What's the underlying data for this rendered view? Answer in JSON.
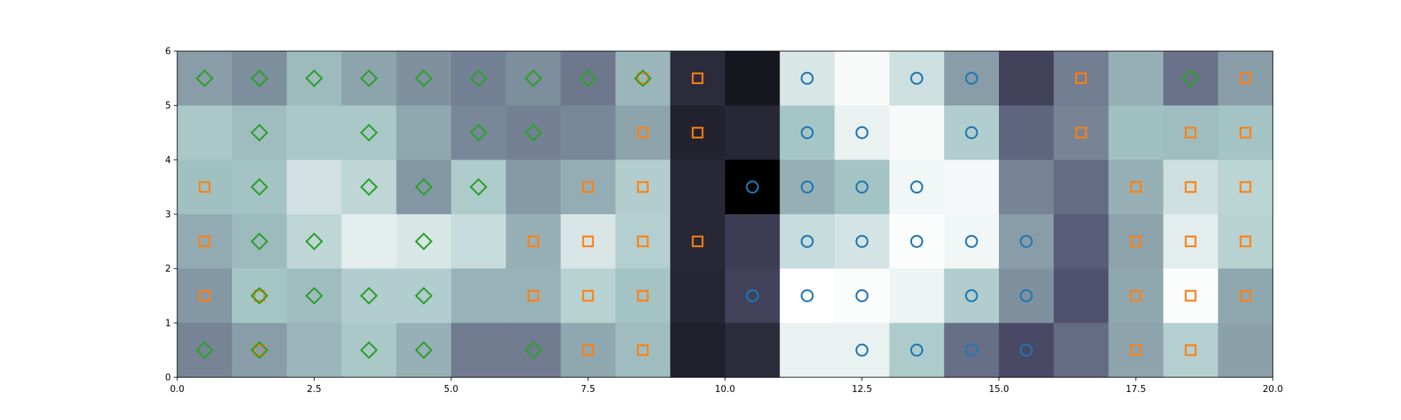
{
  "chart_data": {
    "type": "heatmap",
    "title": "",
    "xlabel": "",
    "ylabel": "",
    "xlim": [
      0,
      20
    ],
    "ylim": [
      0,
      6
    ],
    "x_ticks": [
      "0.0",
      "2.5",
      "5.0",
      "7.5",
      "10.0",
      "12.5",
      "15.0",
      "17.5",
      "20.0"
    ],
    "y_ticks": [
      "0",
      "1",
      "2",
      "3",
      "4",
      "5",
      "6"
    ],
    "colormap": "bone",
    "grid": false,
    "legend": "none",
    "cell_values_row_top_to_bottom": [
      [
        0.62,
        0.57,
        0.71,
        0.64,
        0.58,
        0.53,
        0.57,
        0.5,
        0.7,
        0.2,
        0.1,
        0.89,
        0.98,
        0.86,
        0.62,
        0.3,
        0.52,
        0.68,
        0.48,
        0.62
      ],
      [
        0.76,
        0.72,
        0.76,
        0.76,
        0.65,
        0.55,
        0.53,
        0.55,
        0.64,
        0.16,
        0.18,
        0.75,
        0.94,
        0.98,
        0.78,
        0.44,
        0.54,
        0.73,
        0.72,
        0.74
      ],
      [
        0.73,
        0.74,
        0.87,
        0.82,
        0.6,
        0.77,
        0.61,
        0.67,
        0.78,
        0.18,
        0.0,
        0.68,
        0.74,
        0.96,
        0.97,
        0.54,
        0.46,
        0.68,
        0.86,
        0.81
      ],
      [
        0.66,
        0.71,
        0.82,
        0.92,
        0.89,
        0.84,
        0.68,
        0.89,
        0.79,
        0.18,
        0.28,
        0.84,
        0.88,
        0.99,
        0.96,
        0.62,
        0.41,
        0.64,
        0.92,
        0.8
      ],
      [
        0.6,
        0.75,
        0.72,
        0.78,
        0.78,
        0.69,
        0.69,
        0.8,
        0.74,
        0.17,
        0.3,
        1.0,
        0.99,
        0.95,
        0.78,
        0.58,
        0.37,
        0.65,
        0.99,
        0.65
      ],
      [
        0.54,
        0.62,
        0.7,
        0.76,
        0.68,
        0.51,
        0.51,
        0.65,
        0.72,
        0.15,
        0.2,
        0.94,
        0.94,
        0.77,
        0.47,
        0.34,
        0.46,
        0.64,
        0.79,
        0.63
      ]
    ],
    "series": [
      {
        "marker": "circle",
        "color": "#1f77b4",
        "x": [
          11.5,
          13.5,
          14.5,
          11.5,
          12.5,
          14.5,
          10.5,
          11.5,
          12.5,
          13.5,
          11.5,
          12.5,
          13.5,
          14.5,
          15.5,
          10.5,
          11.5,
          12.5,
          14.5,
          15.5,
          12.5,
          13.5,
          14.5,
          15.5
        ],
        "y": [
          5.5,
          5.5,
          5.5,
          4.5,
          4.5,
          4.5,
          3.5,
          3.5,
          3.5,
          3.5,
          2.5,
          2.5,
          2.5,
          2.5,
          2.5,
          1.5,
          1.5,
          1.5,
          1.5,
          1.5,
          0.5,
          0.5,
          0.5,
          0.5
        ]
      },
      {
        "marker": "square",
        "color": "#ff7f0e",
        "x": [
          8.5,
          9.5,
          16.5,
          19.5,
          8.5,
          9.5,
          16.5,
          18.5,
          19.5,
          0.5,
          7.5,
          8.5,
          17.5,
          18.5,
          19.5,
          0.5,
          6.5,
          7.5,
          8.5,
          9.5,
          17.5,
          18.5,
          19.5,
          0.5,
          1.5,
          6.5,
          7.5,
          8.5,
          17.5,
          18.5,
          19.5,
          1.5,
          7.5,
          8.5,
          17.5,
          18.5
        ],
        "y": [
          5.5,
          5.5,
          5.5,
          5.5,
          4.5,
          4.5,
          4.5,
          4.5,
          4.5,
          3.5,
          3.5,
          3.5,
          3.5,
          3.5,
          3.5,
          2.5,
          2.5,
          2.5,
          2.5,
          2.5,
          2.5,
          2.5,
          2.5,
          1.5,
          1.5,
          1.5,
          1.5,
          1.5,
          1.5,
          1.5,
          1.5,
          0.5,
          0.5,
          0.5,
          0.5,
          0.5
        ]
      },
      {
        "marker": "diamond",
        "color": "#2ca02c",
        "x": [
          0.5,
          1.5,
          2.5,
          3.5,
          4.5,
          5.5,
          6.5,
          7.5,
          8.5,
          18.5,
          1.5,
          3.5,
          5.5,
          6.5,
          1.5,
          3.5,
          4.5,
          5.5,
          1.5,
          2.5,
          4.5,
          1.5,
          2.5,
          3.5,
          4.5,
          0.5,
          1.5,
          3.5,
          4.5,
          6.5
        ],
        "y": [
          5.5,
          5.5,
          5.5,
          5.5,
          5.5,
          5.5,
          5.5,
          5.5,
          5.5,
          5.5,
          4.5,
          4.5,
          4.5,
          4.5,
          3.5,
          3.5,
          3.5,
          3.5,
          2.5,
          2.5,
          2.5,
          1.5,
          1.5,
          1.5,
          1.5,
          0.5,
          0.5,
          0.5,
          0.5,
          0.5
        ]
      }
    ]
  }
}
